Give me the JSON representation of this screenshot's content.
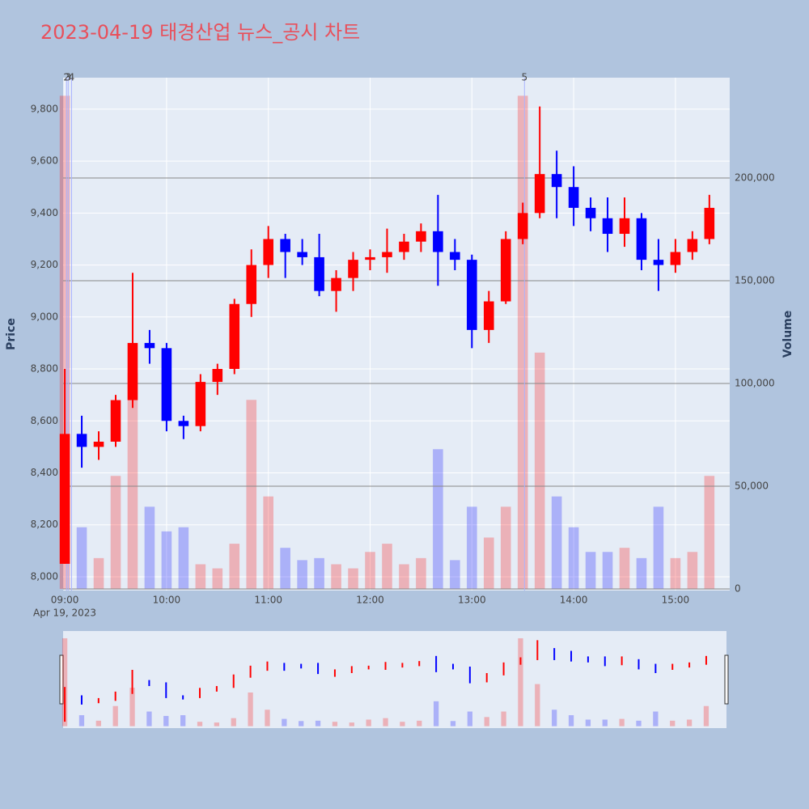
{
  "chart_data": {
    "type": "candlestick",
    "title": "2023-04-19 태경산업 뉴스_공시 차트",
    "y_label": "Price",
    "y2_label": "Volume",
    "x_date_label": "Apr 19, 2023",
    "x": [
      "2023-04-19 09:00",
      "2023-04-19 09:10",
      "2023-04-19 09:20",
      "2023-04-19 09:30",
      "2023-04-19 09:40",
      "2023-04-19 09:50",
      "2023-04-19 10:00",
      "2023-04-19 10:10",
      "2023-04-19 10:20",
      "2023-04-19 10:30",
      "2023-04-19 10:40",
      "2023-04-19 10:50",
      "2023-04-19 11:00",
      "2023-04-19 11:10",
      "2023-04-19 11:20",
      "2023-04-19 11:30",
      "2023-04-19 11:40",
      "2023-04-19 11:50",
      "2023-04-19 12:00",
      "2023-04-19 12:10",
      "2023-04-19 12:20",
      "2023-04-19 12:30",
      "2023-04-19 12:40",
      "2023-04-19 12:50",
      "2023-04-19 13:00",
      "2023-04-19 13:10",
      "2023-04-19 13:20",
      "2023-04-19 13:30",
      "2023-04-19 13:40",
      "2023-04-19 13:50",
      "2023-04-19 14:00",
      "2023-04-19 14:10",
      "2023-04-19 14:20",
      "2023-04-19 14:30",
      "2023-04-19 14:40",
      "2023-04-19 14:50",
      "2023-04-19 15:00",
      "2023-04-19 15:10",
      "2023-04-19 15:20"
    ],
    "open": [
      8050,
      8550,
      8500,
      8520,
      8680,
      8900,
      8880,
      8600,
      8580,
      8750,
      8800,
      9050,
      9200,
      9300,
      9250,
      9230,
      9100,
      9150,
      9220,
      9230,
      9250,
      9290,
      9330,
      9250,
      9220,
      8950,
      9060,
      9300,
      9400,
      9550,
      9500,
      9420,
      9380,
      9320,
      9380,
      9220,
      9200,
      9250,
      9300
    ],
    "high": [
      8800,
      8620,
      8560,
      8700,
      9170,
      8950,
      8900,
      8620,
      8780,
      8820,
      9070,
      9260,
      9350,
      9320,
      9300,
      9320,
      9180,
      9250,
      9260,
      9340,
      9320,
      9360,
      9470,
      9300,
      9240,
      9100,
      9330,
      9440,
      9810,
      9640,
      9580,
      9460,
      9460,
      9460,
      9400,
      9300,
      9300,
      9330,
      9470
    ],
    "low": [
      8050,
      8420,
      8450,
      8500,
      8650,
      8820,
      8560,
      8530,
      8560,
      8700,
      8780,
      9000,
      9150,
      9150,
      9200,
      9080,
      9020,
      9100,
      9180,
      9170,
      9220,
      9250,
      9120,
      9180,
      8880,
      8900,
      9050,
      9280,
      9380,
      9380,
      9350,
      9330,
      9250,
      9270,
      9180,
      9100,
      9170,
      9220,
      9280
    ],
    "close": [
      8550,
      8500,
      8520,
      8680,
      8900,
      8880,
      8600,
      8580,
      8750,
      8800,
      9050,
      9200,
      9300,
      9250,
      9230,
      9100,
      9150,
      9220,
      9230,
      9250,
      9290,
      9330,
      9250,
      9220,
      8950,
      9060,
      9300,
      9400,
      9550,
      9500,
      9420,
      9380,
      9320,
      9380,
      9220,
      9200,
      9250,
      9300,
      9420
    ],
    "volume": [
      240000,
      30000,
      15000,
      55000,
      105000,
      40000,
      28000,
      30000,
      12000,
      10000,
      22000,
      92000,
      45000,
      20000,
      14000,
      15000,
      12000,
      10000,
      18000,
      22000,
      12000,
      15000,
      68000,
      14000,
      40000,
      25000,
      40000,
      240000,
      115000,
      45000,
      30000,
      18000,
      18000,
      20000,
      15000,
      40000,
      15000,
      18000,
      55000
    ],
    "up_color": "#ff0000",
    "down_color": "#0000ff",
    "annotations": [
      {
        "x": "2023-04-19 09:01",
        "label": "2"
      },
      {
        "x": "2023-04-19 09:02",
        "label": "3"
      },
      {
        "x": "2023-04-19 09:04",
        "label": "4"
      },
      {
        "x": "2023-04-19 13:31",
        "label": "5"
      }
    ],
    "xlim": [
      "2023-04-19 08:59",
      "2023-04-19 15:32"
    ],
    "xticks": [
      {
        "value": "2023-04-19 09:00",
        "label": "09:00"
      },
      {
        "value": "2023-04-19 10:00",
        "label": "10:00"
      },
      {
        "value": "2023-04-19 11:00",
        "label": "11:00"
      },
      {
        "value": "2023-04-19 12:00",
        "label": "12:00"
      },
      {
        "value": "2023-04-19 13:00",
        "label": "13:00"
      },
      {
        "value": "2023-04-19 14:00",
        "label": "14:00"
      },
      {
        "value": "2023-04-19 15:00",
        "label": "15:00"
      }
    ],
    "ylim": [
      7947,
      9921
    ],
    "yticks": [
      {
        "value": 8000,
        "label": "8,000"
      },
      {
        "value": 8200,
        "label": "8,200"
      },
      {
        "value": 8400,
        "label": "8,400"
      },
      {
        "value": 8600,
        "label": "8,600"
      },
      {
        "value": 8800,
        "label": "8,800"
      },
      {
        "value": 9000,
        "label": "9,000"
      },
      {
        "value": 9200,
        "label": "9,200"
      },
      {
        "value": 9400,
        "label": "9,400"
      },
      {
        "value": 9600,
        "label": "9,600"
      },
      {
        "value": 9800,
        "label": "9,800"
      }
    ],
    "y2lim": [
      -800,
      248800
    ],
    "y2ticks": [
      0,
      {
        "value": 50000,
        "label": "50,000"
      },
      {
        "value": 100000,
        "label": "100,000"
      },
      {
        "value": 150000,
        "label": "150,000"
      },
      {
        "value": 200000,
        "label": "200,000"
      }
    ],
    "grid": true
  }
}
